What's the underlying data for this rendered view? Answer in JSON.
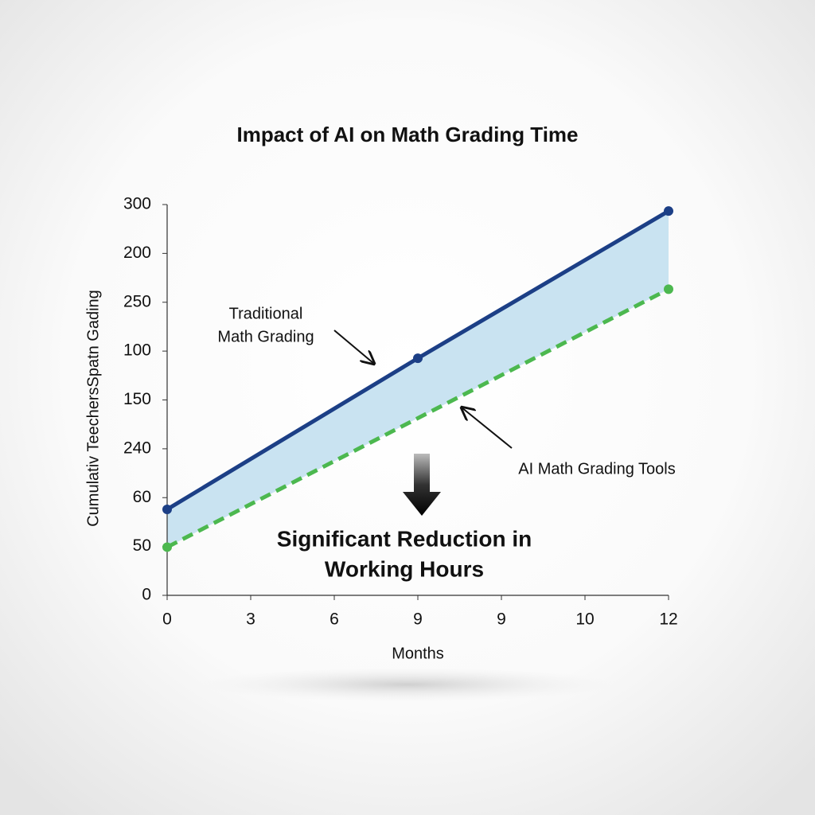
{
  "chart_data": {
    "type": "line",
    "title": "Impact of AI on Math Grading Time",
    "x_label": "Months",
    "y_label": "Cumulativ TeechersSpatn Gading",
    "xlim": [
      0,
      12
    ],
    "xticks": [
      0,
      {
        "value": 2,
        "label": "3"
      },
      {
        "value": 4,
        "label": "6"
      },
      {
        "value": 6,
        "label": "9"
      },
      {
        "value": 8,
        "label": "9"
      },
      10,
      12
    ],
    "ylim": [
      0,
      300
    ],
    "yticks": [
      0,
      {
        "value": 37.5,
        "label": "50"
      },
      {
        "value": 75,
        "label": "60"
      },
      {
        "value": 112.5,
        "label": "240"
      },
      150,
      {
        "value": 187.5,
        "label": "100"
      },
      {
        "value": 225,
        "label": "250"
      },
      {
        "value": 262.5,
        "label": "200"
      },
      300
    ],
    "series": [
      {
        "color": "#1c3f86",
        "dashed": false,
        "x": [
          0,
          6,
          12
        ],
        "values": [
          66,
          182,
          295
        ]
      },
      {
        "color": "#4cb84f",
        "dashed": true,
        "x": [
          0,
          12
        ],
        "values": [
          37,
          235
        ]
      }
    ],
    "fill_between": true,
    "fill_color": "#c3e0f0",
    "annotations": [
      {
        "lines": [
          "Traditional",
          "Math Grading"
        ]
      },
      {
        "lines": [
          "AI Math Grading Tools"
        ]
      },
      {
        "lines": [
          "Significant Reduction in",
          "Working Hours"
        ]
      }
    ]
  }
}
